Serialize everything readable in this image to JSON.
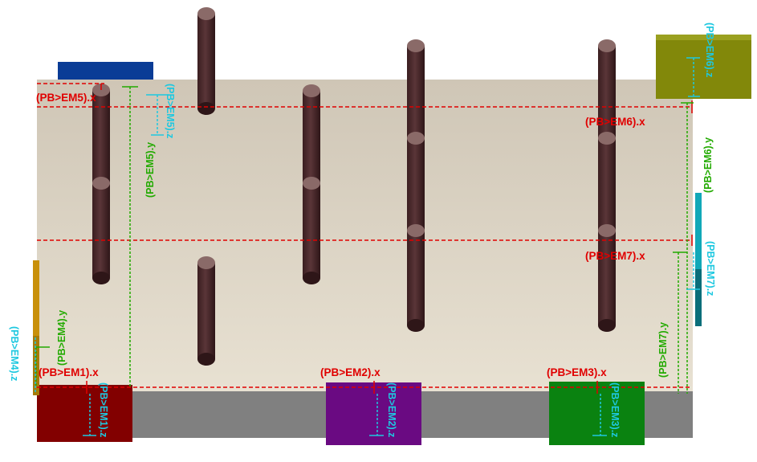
{
  "colors": {
    "plate": "#d8d0c0",
    "plate_front": "#808080",
    "pin": "#4a2a2c",
    "pin_top": "#8a6a68",
    "x_dim": "#e00000",
    "y_dim": "#22aa00",
    "z_dim": "#1ec8e0"
  },
  "modules": [
    {
      "id": "EM1",
      "color": "#820000"
    },
    {
      "id": "EM2",
      "color": "#6a0a82"
    },
    {
      "id": "EM3",
      "color": "#0a8210"
    },
    {
      "id": "EM4",
      "color": "#c8900a"
    },
    {
      "id": "EM5",
      "color": "#0a3c96"
    },
    {
      "id": "EM6",
      "color": "#82880a"
    },
    {
      "id": "EM7",
      "color": "#11a8b8"
    }
  ],
  "labels": {
    "em1_x": "(PB>EM1).x",
    "em1_z": "(PB>EM1).z",
    "em2_x": "(PB>EM2).x",
    "em2_z": "(PB>EM2).z",
    "em3_x": "(PB>EM3).x",
    "em3_z": "(PB>EM3).z",
    "em4_y": "(PB>EM4).y",
    "em4_z": "(PB>EM4).z",
    "em5_x": "(PB>EM5).x",
    "em5_y": "(PB>EM5).y",
    "em5_z": "(PB>EM5).z",
    "em6_x": "(PB>EM6).x",
    "em6_y": "(PB>EM6).y",
    "em6_z": "(PB>EM6).z",
    "em7_x": "(PB>EM7).x",
    "em7_y": "(PB>EM7).y",
    "em7_z": "(PB>EM7).z"
  }
}
